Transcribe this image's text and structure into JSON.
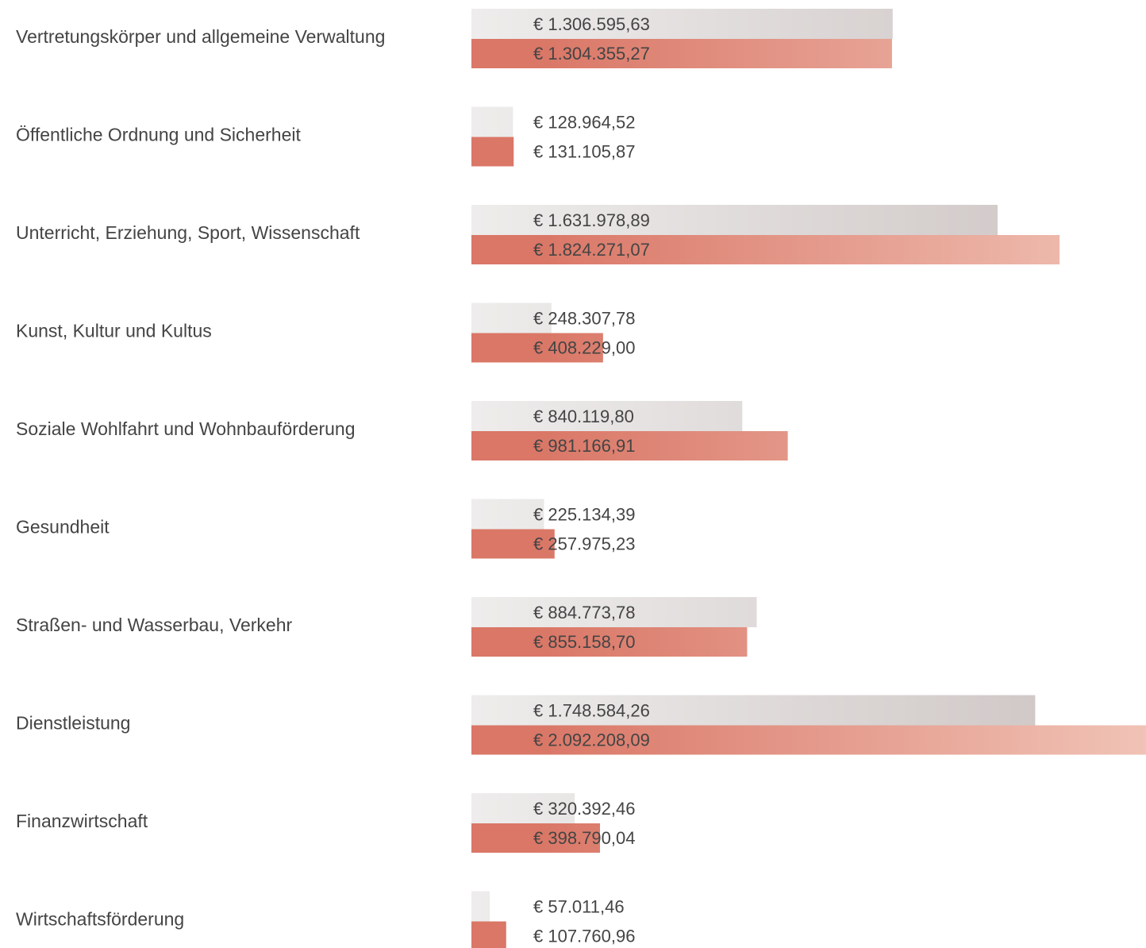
{
  "chart_data": {
    "type": "bar",
    "orientation": "horizontal",
    "categories": [
      "Vertretungskörper und allgemeine Verwaltung",
      "Öffentliche Ordnung und Sicherheit",
      "Unterricht, Erziehung, Sport, Wissenschaft",
      "Kunst, Kultur und Kultus",
      "Soziale Wohlfahrt und Wohnbauförderung",
      "Gesundheit",
      "Straßen- und Wasserbau, Verkehr",
      "Dienstleistung",
      "Finanzwirtschaft",
      "Wirtschaftsförderung"
    ],
    "series": [
      {
        "color": "#eeedec",
        "values": [
          1306595.63,
          128964.52,
          1631978.89,
          248307.78,
          840119.8,
          225134.39,
          884773.78,
          1748584.26,
          320392.46,
          57011.46
        ],
        "value_labels": [
          "€ 1.306.595,63",
          "€ 128.964,52",
          "€ 1.631.978,89",
          "€ 248.307,78",
          "€ 840.119,80",
          "€ 225.134,39",
          "€ 884.773,78",
          "€ 1.748.584,26",
          "€ 320.392,46",
          "€ 57.011,46"
        ]
      },
      {
        "color": "#da7767",
        "values": [
          1304355.27,
          131105.87,
          1824271.07,
          408229.0,
          981166.91,
          257975.23,
          855158.7,
          2092208.09,
          398790.04,
          107760.96
        ],
        "value_labels": [
          "€ 1.304.355,27",
          "€ 131.105,87",
          "€ 1.824.271,07",
          "€ 408.229,00",
          "€ 981.166,91",
          "€ 257.975,23",
          "€ 855.158,70",
          "€ 2.092.208,09",
          "€ 398.790,04",
          "€ 107.760,96"
        ]
      }
    ]
  }
}
